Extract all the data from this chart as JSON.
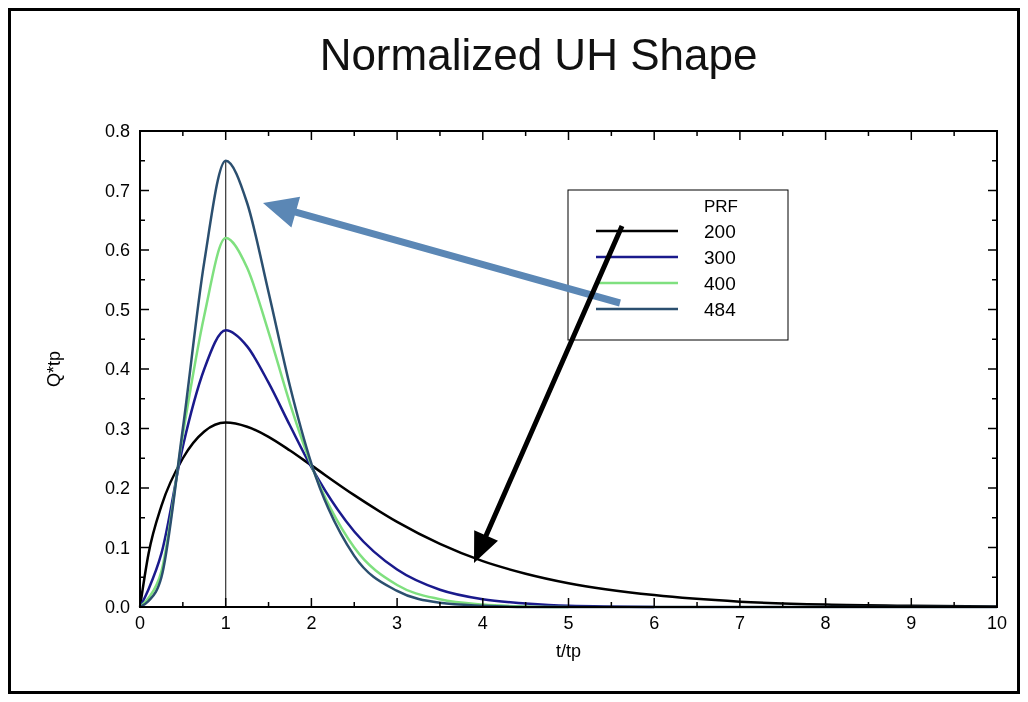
{
  "chart_data": {
    "type": "line",
    "title": "Normalized UH Shape",
    "xlabel": "t/tp",
    "ylabel": "Q*tp",
    "legend_title": "PRF",
    "legend": "top right",
    "grid": false,
    "marker": "none",
    "line_style": "solid",
    "x": [
      0,
      0.1,
      0.25,
      0.5,
      0.75,
      1,
      1.25,
      1.5,
      1.75,
      2,
      2.5,
      3,
      3.5,
      4,
      4.5,
      5,
      6,
      7,
      8,
      9,
      10
    ],
    "series": [
      {
        "name": "200",
        "color": "#000000",
        "values": [
          0,
          0.09,
          0.17,
          0.25,
          0.295,
          0.31,
          0.303,
          0.286,
          0.263,
          0.238,
          0.188,
          0.143,
          0.106,
          0.077,
          0.056,
          0.04,
          0.02,
          0.009,
          0.004,
          0.002,
          0.001
        ]
      },
      {
        "name": "300",
        "color": "#1a1a8c",
        "values": [
          0,
          0.03,
          0.09,
          0.27,
          0.4,
          0.465,
          0.438,
          0.377,
          0.305,
          0.235,
          0.127,
          0.063,
          0.029,
          0.013,
          0.006,
          0.002,
          0,
          null,
          null,
          null,
          null
        ]
      },
      {
        "name": "400",
        "color": "#7fe07f",
        "values": [
          0,
          0.015,
          0.06,
          0.29,
          0.49,
          0.62,
          0.57,
          0.462,
          0.342,
          0.238,
          0.1,
          0.037,
          0.013,
          0.004,
          0.001,
          0,
          null,
          null,
          null,
          null,
          null
        ]
      },
      {
        "name": "484",
        "color": "#2b4f6f",
        "values": [
          0,
          0.01,
          0.05,
          0.3,
          0.58,
          0.75,
          0.679,
          0.529,
          0.371,
          0.241,
          0.086,
          0.027,
          0.007,
          0.002,
          0,
          0,
          0,
          0,
          0,
          0,
          0
        ]
      }
    ],
    "xlim": [
      0,
      10
    ],
    "xticks": [
      0,
      {
        "value": 0.5,
        "label": null
      },
      1,
      {
        "value": 1.5,
        "label": null
      },
      2,
      {
        "value": 2.5,
        "label": null
      },
      3,
      {
        "value": 3.5,
        "label": null
      },
      4,
      {
        "value": 4.5,
        "label": null
      },
      5,
      {
        "value": 5.5,
        "label": null
      },
      6,
      {
        "value": 6.5,
        "label": null
      },
      7,
      {
        "value": 7.5,
        "label": null
      },
      8,
      {
        "value": 8.5,
        "label": null
      },
      9,
      {
        "value": 9.5,
        "label": null
      },
      10
    ],
    "ylim": [
      0,
      0.8
    ],
    "yticks": [
      {
        "value": 0,
        "label": "0.0"
      },
      {
        "value": 0.05,
        "label": null
      },
      0.1,
      {
        "value": 0.15,
        "label": null
      },
      0.2,
      {
        "value": 0.25,
        "label": null
      },
      0.3,
      {
        "value": 0.35,
        "label": null
      },
      0.4,
      {
        "value": 0.45,
        "label": null
      },
      0.5,
      {
        "value": 0.55,
        "label": null
      },
      0.6,
      {
        "value": 0.65,
        "label": null
      },
      0.7,
      {
        "value": 0.75,
        "label": null
      },
      0.8
    ],
    "ref_lines": [
      {
        "axis": "x",
        "value": 1,
        "color": "#333333"
      }
    ]
  }
}
